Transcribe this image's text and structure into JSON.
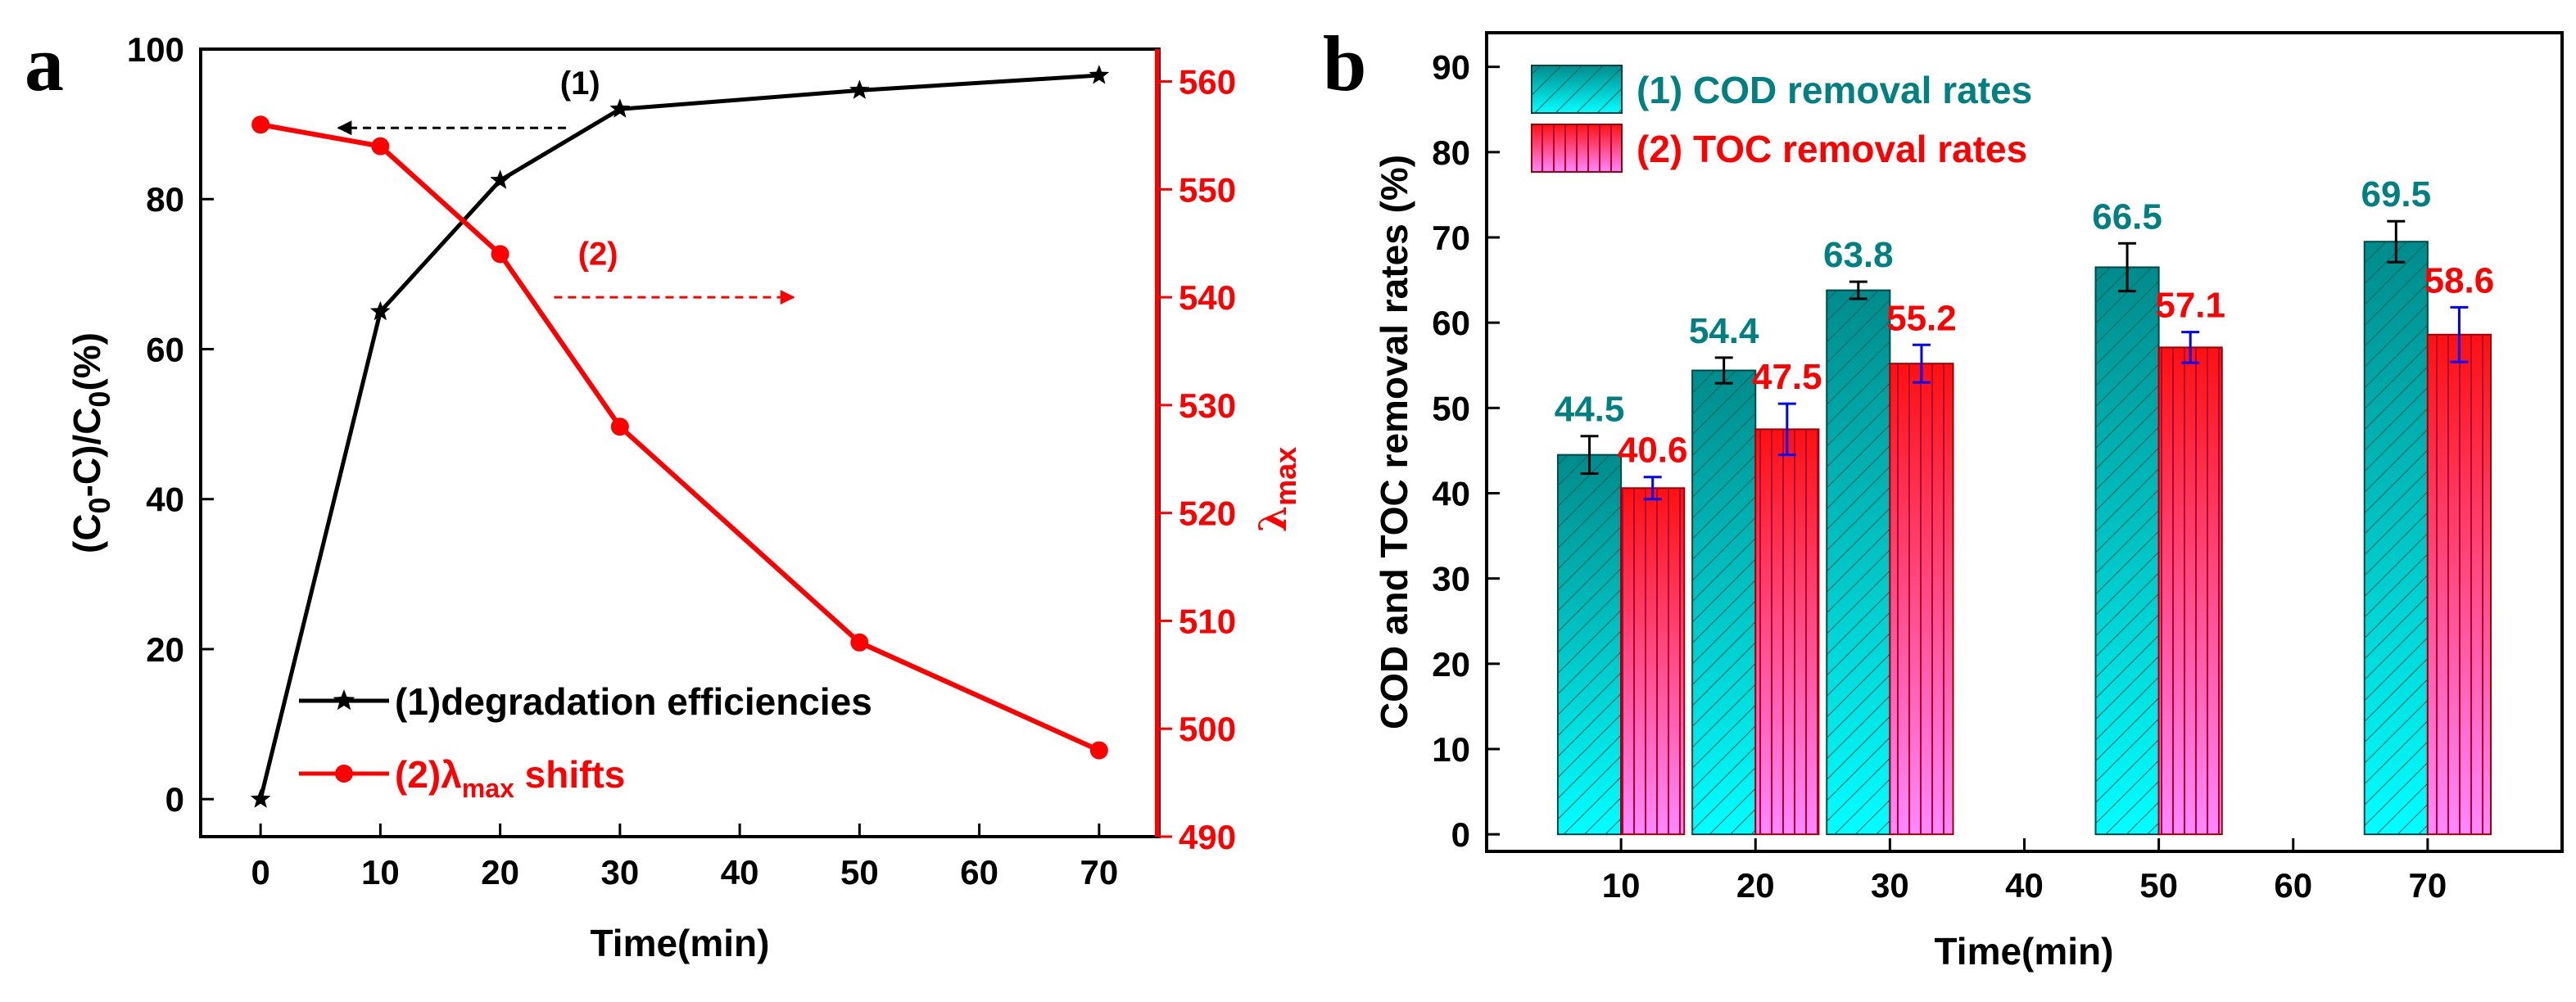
{
  "figure": {
    "panel_a_letter": "a",
    "panel_b_letter": "b"
  },
  "colors": {
    "black": "#000000",
    "red": "#ff0000",
    "teal": "#008080",
    "teal_light": "#00ffff",
    "pink_light": "#ff80ff",
    "blue": "#0000ff"
  },
  "chart_data": [
    {
      "type": "line",
      "panel": "a",
      "title": "",
      "xlabel": "Time(min)",
      "ylabel_parts": {
        "open": "(C",
        "sub1": "0",
        "mid": "-C)/C",
        "sub2": "0",
        "close": "(%)"
      },
      "y2label_parts": {
        "lambda": "λ",
        "sub": "max"
      },
      "xlim": [
        -5,
        75
      ],
      "ylim": [
        -5,
        100
      ],
      "y2lim": [
        490,
        563
      ],
      "xticks": [
        0,
        10,
        20,
        30,
        40,
        50,
        60,
        70
      ],
      "yticks": [
        0,
        20,
        40,
        60,
        80,
        100
      ],
      "y2ticks": [
        490,
        500,
        510,
        520,
        530,
        540,
        550,
        560
      ],
      "series": [
        {
          "name": "(1)degradation efficiencies",
          "axis": "left",
          "marker": "star",
          "x": [
            0,
            10,
            20,
            30,
            50,
            70
          ],
          "values": [
            0,
            65,
            82.5,
            92,
            94.5,
            96.5
          ]
        },
        {
          "name": "(2)λmax shifts",
          "legend_parts": {
            "prefix": "(2)λ",
            "sub": "max",
            "suffix": " shifts"
          },
          "axis": "right",
          "marker": "circle",
          "x": [
            0,
            10,
            20,
            30,
            50,
            70
          ],
          "values": [
            556,
            554,
            544,
            528,
            508,
            498
          ]
        }
      ],
      "annotations": [
        {
          "text": "(1)",
          "arrow": "left",
          "axis": "left",
          "arrow_from_x": 25.5,
          "arrow_to_x": 6.5,
          "y": 89.5,
          "label_x": 25,
          "label_y": 94
        },
        {
          "text": "(2)",
          "arrow": "right",
          "axis": "right",
          "arrow_from_x": 24.5,
          "arrow_to_x": 44.5,
          "y": 540,
          "label_x": 26.5,
          "label_y": 543
        }
      ],
      "legend_position": "bottom-left"
    },
    {
      "type": "bar",
      "panel": "b",
      "title": "",
      "xlabel": "Time(min)",
      "ylabel": "COD and TOC removal rates (%)",
      "xlim": [
        0,
        80
      ],
      "ylim": [
        -2,
        94
      ],
      "xticks": [
        10,
        20,
        30,
        40,
        50,
        60,
        70
      ],
      "yticks": [
        0,
        10,
        20,
        30,
        40,
        50,
        60,
        70,
        80,
        90
      ],
      "categories": [
        10,
        20,
        30,
        50,
        70
      ],
      "series": [
        {
          "name": "(1) COD removal rates",
          "values": [
            44.5,
            54.4,
            63.8,
            66.5,
            69.5
          ],
          "labels": [
            "44.5",
            "54.4",
            "63.8",
            "66.5",
            "69.5"
          ],
          "errors": [
            2.2,
            1.5,
            1.0,
            2.8,
            2.4
          ]
        },
        {
          "name": "(2) TOC removal rates",
          "values": [
            40.6,
            47.5,
            55.2,
            57.1,
            58.6
          ],
          "labels": [
            "40.6",
            "47.5",
            "55.2",
            "57.1",
            "58.6"
          ],
          "errors": [
            1.3,
            3.0,
            2.2,
            1.8,
            3.2
          ]
        }
      ],
      "legend_position": "top-left"
    }
  ]
}
